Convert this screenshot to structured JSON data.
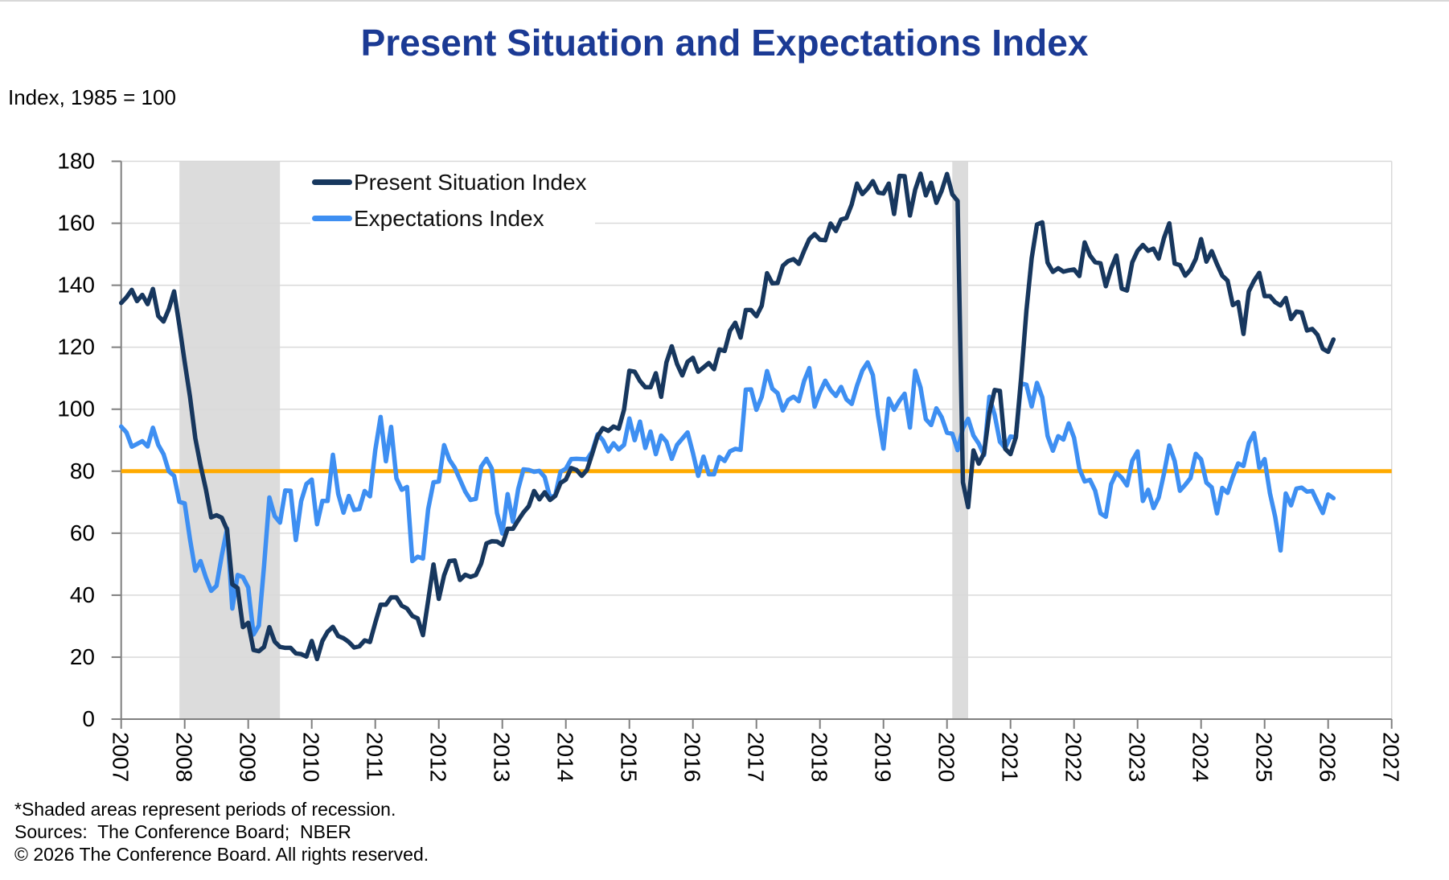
{
  "title": "Present Situation and Expectations Index",
  "subtitle": "Index, 1985 = 100",
  "colors": {
    "title": "#1b3a94",
    "present_situation": "#17375e",
    "expectations": "#3e8ff2",
    "reference_line": "#ffaa00",
    "recession_band": "#dcdcdc",
    "gridline": "#d9d9d9",
    "axis": "#7f7f7f",
    "tick_label": "#000000"
  },
  "legend": [
    {
      "label": "Present Situation Index"
    },
    {
      "label": "Expectations Index"
    }
  ],
  "footnotes": [
    "*Shaded areas represent periods of recession.",
    "Sources:  The Conference Board;  NBER",
    "© 2026 The Conference Board. All rights reserved."
  ],
  "chart_data": {
    "type": "line",
    "title": "Present Situation and Expectations Index",
    "ylabel": "Index, 1985 = 100",
    "grid": true,
    "legend_position": "upper-left-inside",
    "x_start_year": 2007,
    "x_start_month": 1,
    "x_frequency": "monthly",
    "x_tick_years": [
      2007,
      2008,
      2009,
      2010,
      2011,
      2012,
      2013,
      2014,
      2015,
      2016,
      2017,
      2018,
      2019,
      2020,
      2021,
      2022,
      2023,
      2024,
      2025,
      2026,
      2027
    ],
    "x_axis_range": [
      2007,
      2027
    ],
    "y_axis": {
      "min": 0,
      "max": 180,
      "step": 20
    },
    "reference_line": {
      "value": 80
    },
    "recession_bands": [
      {
        "start": 2007.917,
        "end": 2009.5
      },
      {
        "start": 2020.083,
        "end": 2020.333
      }
    ],
    "series": [
      {
        "name": "Present Situation Index",
        "color_key": "present_situation",
        "values": [
          134.3,
          136.1,
          138.5,
          134.9,
          136.9,
          133.9,
          138.8,
          130.1,
          128.3,
          132.3,
          138.0,
          127.0,
          115.2,
          104.0,
          90.6,
          81.9,
          74.2,
          65.1,
          65.8,
          65.0,
          61.1,
          43.5,
          42.3,
          29.7,
          31.1,
          22.3,
          21.9,
          23.3,
          29.7,
          25.0,
          23.3,
          23.0,
          23.0,
          21.2,
          21.0,
          20.2,
          25.2,
          19.4,
          25.2,
          28.2,
          29.8,
          26.8,
          26.1,
          24.9,
          23.1,
          23.5,
          25.4,
          24.9,
          31.1,
          36.9,
          36.9,
          39.3,
          39.3,
          36.6,
          35.7,
          33.3,
          32.5,
          27.1,
          38.3,
          49.9,
          38.8,
          46.4,
          51.0,
          51.2,
          44.9,
          46.6,
          45.9,
          46.5,
          50.2,
          56.7,
          57.4,
          57.3,
          56.2,
          61.4,
          61.4,
          64.2,
          66.7,
          68.7,
          73.6,
          70.9,
          73.2,
          70.7,
          72.0,
          76.2,
          77.3,
          81.0,
          80.4,
          78.5,
          80.4,
          85.7,
          91.3,
          93.9,
          93.0,
          94.4,
          93.7,
          99.9,
          112.4,
          112.1,
          109.1,
          107.1,
          107.1,
          111.6,
          104.0,
          115.1,
          120.3,
          114.6,
          110.9,
          115.3,
          116.6,
          112.1,
          113.5,
          114.9,
          112.9,
          119.3,
          118.8,
          125.3,
          127.9,
          123.1,
          132.0,
          132.0,
          130.0,
          133.4,
          143.9,
          140.6,
          140.7,
          146.3,
          147.8,
          148.4,
          146.9,
          151.1,
          154.9,
          156.5,
          154.7,
          154.5,
          159.9,
          157.5,
          161.2,
          161.7,
          166.1,
          172.8,
          169.4,
          171.2,
          173.6,
          169.9,
          169.6,
          172.8,
          163.0,
          175.3,
          175.2,
          162.5,
          170.9,
          176.0,
          169.0,
          173.1,
          166.6,
          170.5,
          175.9,
          169.3,
          167.2,
          76.4,
          68.4,
          86.7,
          82.4,
          85.8,
          98.9,
          106.2,
          105.9,
          87.2,
          85.5,
          90.9,
          110.1,
          131.9,
          148.7,
          159.6,
          160.3,
          147.3,
          144.3,
          145.5,
          144.4,
          144.8,
          145.1,
          143.0,
          153.8,
          149.6,
          147.4,
          147.1,
          139.7,
          145.4,
          149.6,
          138.9,
          138.3,
          147.4,
          151.1,
          153.0,
          151.1,
          151.8,
          148.6,
          155.3,
          160.0,
          147.0,
          146.5,
          143.1,
          145.0,
          148.5,
          154.9,
          147.6,
          151.0,
          146.8,
          143.1,
          141.5,
          133.6,
          134.6,
          124.3,
          138.0,
          141.4,
          144.0,
          136.5,
          136.5,
          134.5,
          133.5,
          135.9,
          129.1,
          131.5,
          131.2,
          125.4,
          125.9,
          124.0,
          119.5,
          118.5,
          122.5
        ]
      },
      {
        "name": "Expectations Index",
        "color_key": "expectations",
        "values": [
          94.4,
          92.5,
          87.9,
          88.8,
          89.7,
          88.0,
          94.0,
          88.5,
          85.5,
          80.0,
          78.5,
          70.1,
          69.6,
          58.0,
          47.9,
          51.0,
          45.7,
          41.4,
          43.0,
          52.8,
          61.5,
          35.7,
          46.5,
          45.8,
          42.5,
          27.3,
          30.2,
          49.5,
          71.5,
          65.5,
          63.4,
          73.8,
          73.7,
          57.8,
          70.3,
          75.9,
          77.3,
          62.9,
          70.4,
          70.4,
          85.3,
          72.7,
          66.6,
          72.0,
          67.5,
          67.8,
          73.6,
          71.9,
          86.8,
          97.5,
          83.2,
          94.3,
          77.7,
          74.0,
          74.9,
          51.0,
          52.4,
          51.8,
          67.8,
          76.4,
          76.7,
          88.4,
          83.7,
          81.1,
          77.3,
          73.4,
          70.7,
          71.1,
          81.5,
          84.0,
          80.9,
          66.5,
          59.9,
          72.6,
          63.7,
          74.3,
          80.6,
          80.4,
          79.8,
          80.1,
          78.1,
          71.5,
          72.2,
          79.8,
          80.8,
          83.9,
          84.0,
          83.9,
          83.8,
          86.4,
          91.9,
          90.0,
          86.4,
          89.0,
          87.0,
          88.5,
          97.0,
          90.0,
          96.0,
          87.5,
          92.8,
          85.5,
          91.5,
          89.5,
          84.0,
          88.5,
          90.5,
          92.5,
          85.9,
          78.5,
          84.7,
          79.0,
          79.0,
          84.6,
          83.3,
          86.4,
          87.2,
          86.9,
          106.3,
          106.4,
          99.8,
          104.0,
          112.3,
          106.6,
          105.2,
          99.6,
          103.0,
          104.0,
          102.6,
          109.1,
          113.3,
          100.8,
          105.5,
          109.2,
          106.2,
          104.3,
          107.2,
          103.2,
          101.7,
          107.6,
          112.5,
          115.1,
          111.0,
          97.7,
          87.3,
          103.4,
          99.8,
          102.7,
          105.0,
          94.1,
          112.4,
          107.0,
          96.8,
          94.9,
          100.3,
          97.4,
          92.4,
          92.1,
          86.8,
          93.8,
          96.9,
          91.5,
          88.9,
          85.2,
          104.0,
          98.2,
          89.5,
          87.5,
          91.2,
          90.9,
          108.3,
          107.9,
          100.9,
          108.5,
          103.8,
          91.4,
          86.6,
          91.3,
          90.2,
          95.4,
          90.8,
          80.8,
          76.7,
          77.2,
          73.7,
          66.4,
          65.3,
          75.8,
          79.5,
          77.9,
          75.4,
          83.4,
          86.4,
          70.4,
          74.0,
          68.1,
          71.5,
          79.3,
          88.3,
          83.3,
          73.7,
          75.6,
          77.8,
          85.6,
          83.8,
          76.3,
          74.8,
          66.4,
          74.6,
          73.0,
          78.2,
          82.5,
          81.7,
          89.1,
          92.3,
          81.1,
          83.9,
          72.9,
          65.2,
          54.4,
          72.8,
          69.0,
          74.4,
          74.7,
          73.4,
          73.6,
          70.0,
          66.5,
          72.5,
          71.3
        ]
      }
    ]
  }
}
